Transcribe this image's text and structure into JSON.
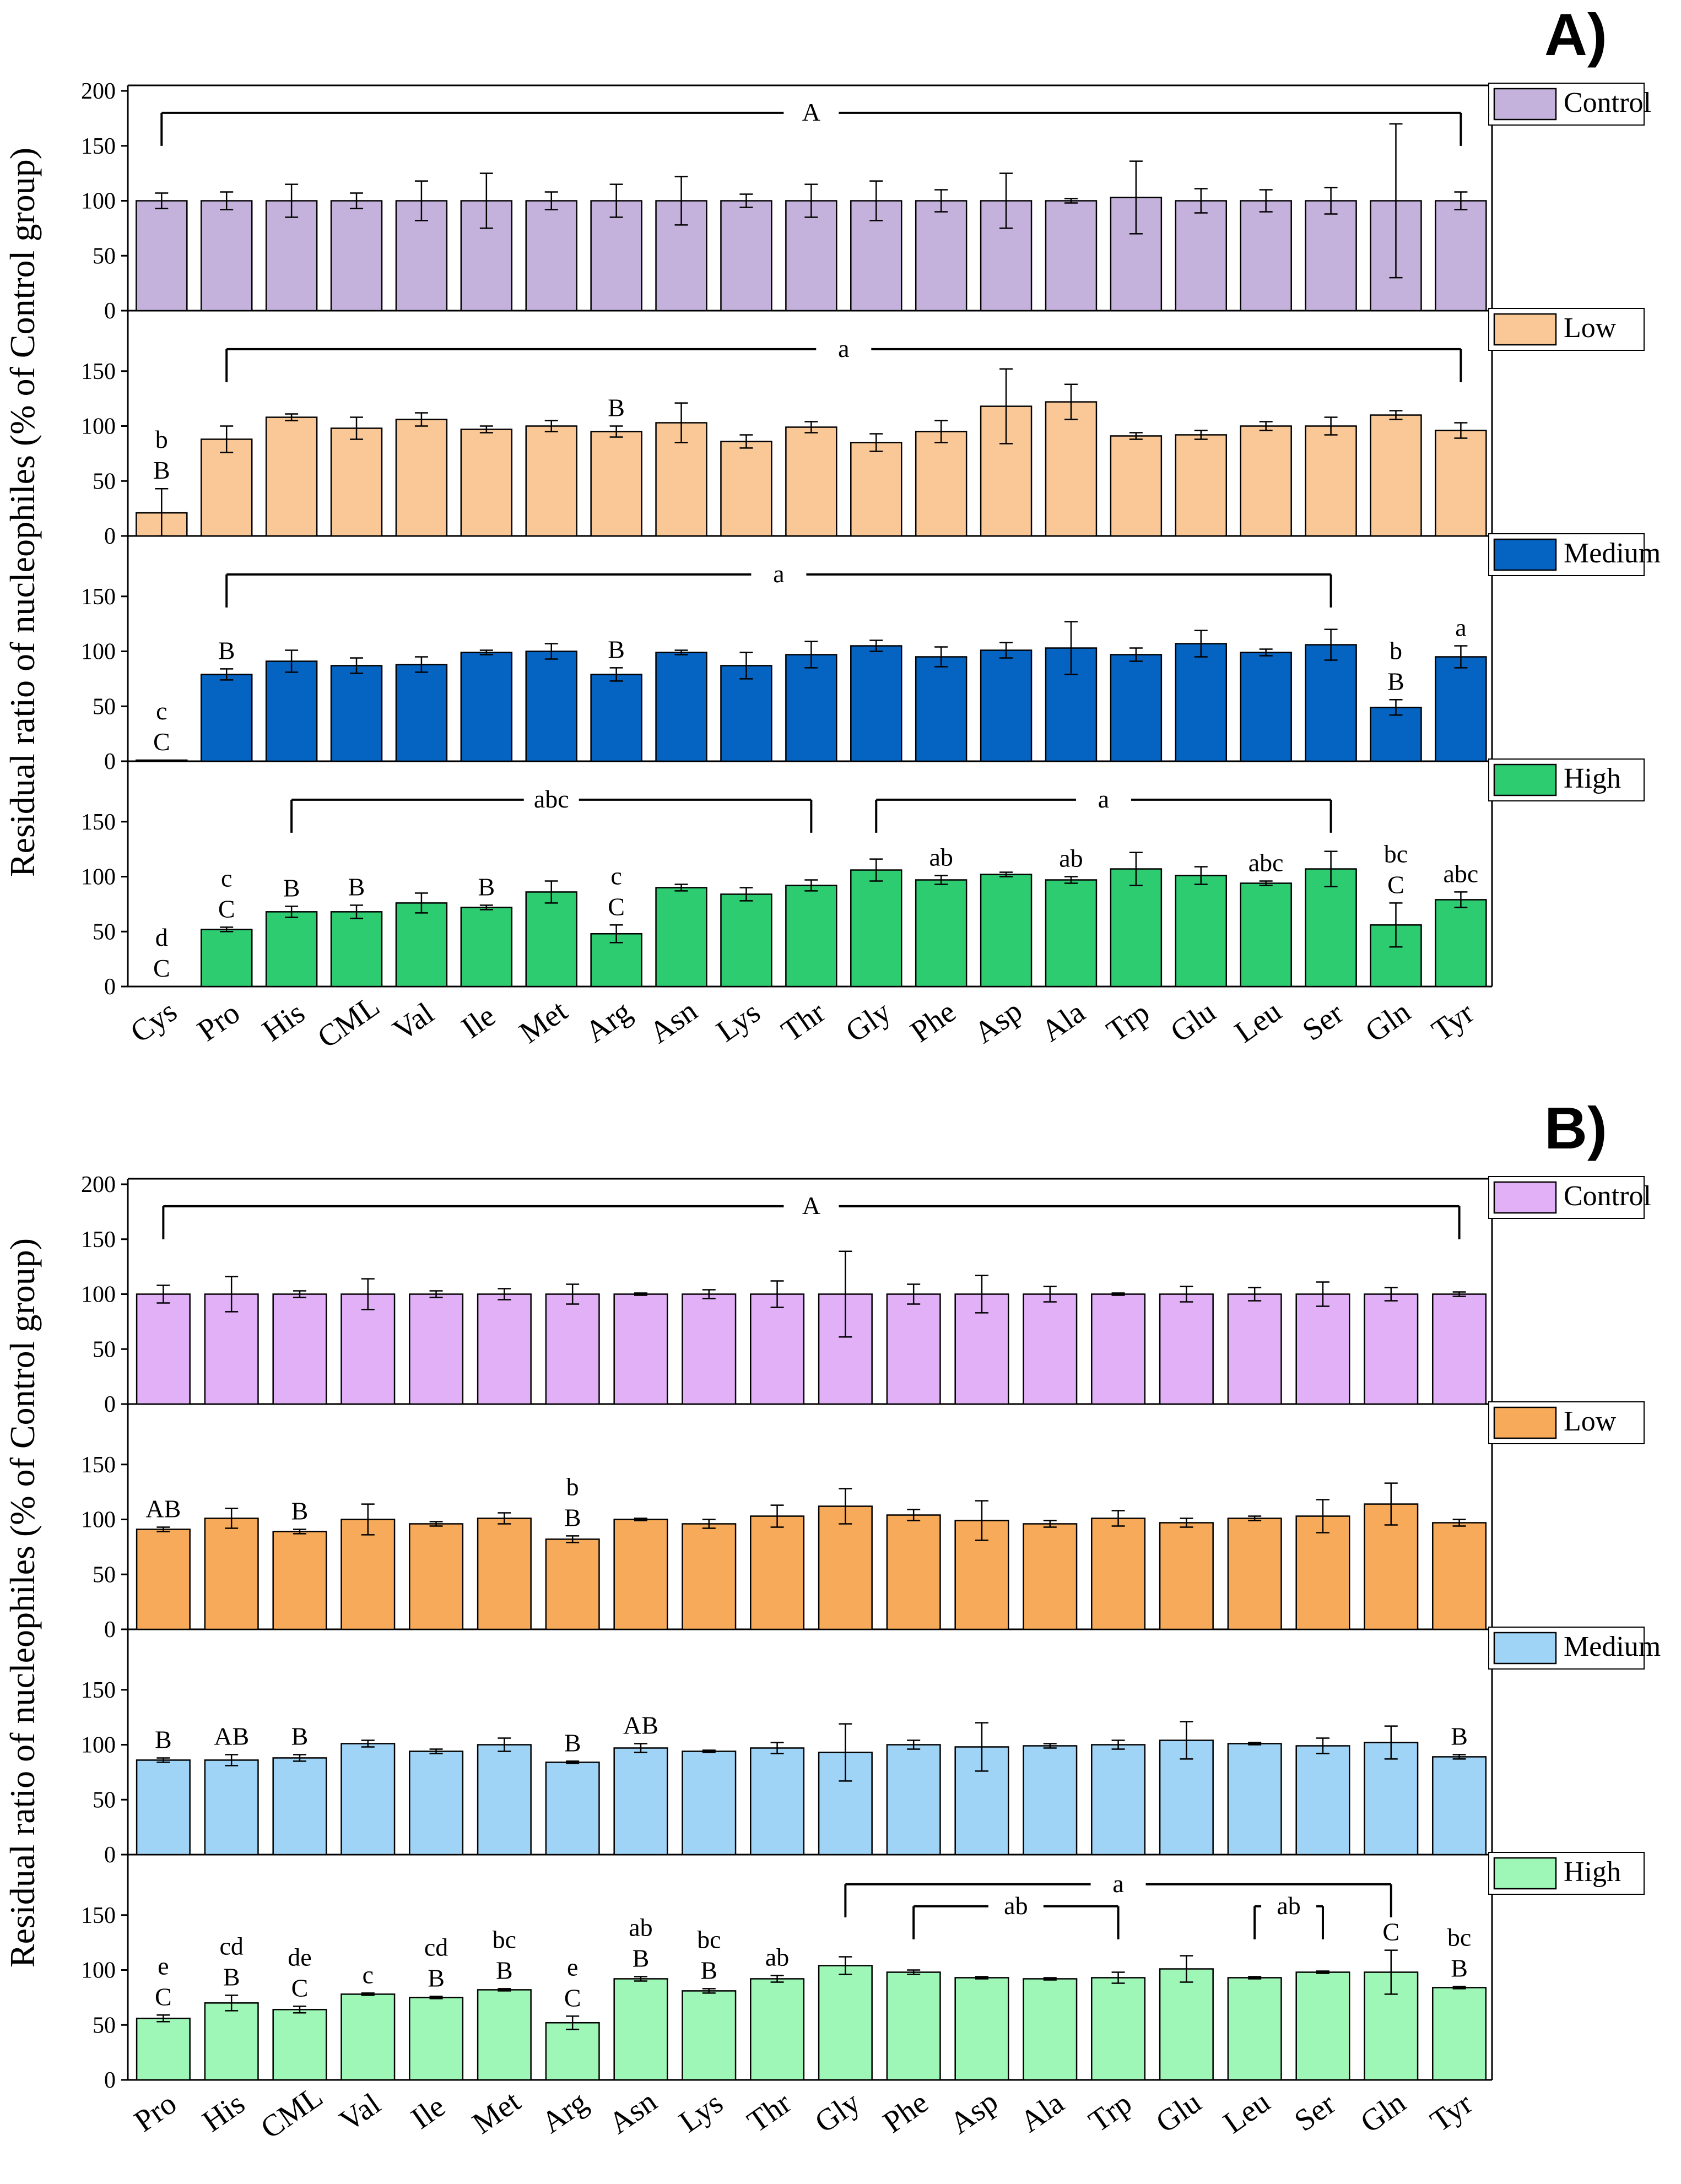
{
  "chart_data": [
    {
      "type": "bar",
      "panel_label": "A)",
      "ylabel": "Residual ratio of nucleophiles (% of Control group)",
      "ylim": [
        0,
        200
      ],
      "yticks": [
        0,
        50,
        100,
        150,
        200
      ],
      "categories": [
        "Cys",
        "Pro",
        "His",
        "CML",
        "Val",
        "Ile",
        "Met",
        "Arg",
        "Asn",
        "Lys",
        "Thr",
        "Gly",
        "Phe",
        "Asp",
        "Ala",
        "Trp",
        "Glu",
        "Leu",
        "Ser",
        "Gln",
        "Tyr"
      ],
      "series": [
        {
          "name": "Control",
          "color": "#c5b2dc",
          "values": [
            100,
            100,
            100,
            100,
            100,
            100,
            100,
            100,
            100,
            100,
            100,
            100,
            100,
            100,
            100,
            103,
            100,
            100,
            100,
            100,
            100
          ],
          "errors": [
            7,
            8,
            15,
            7,
            18,
            25,
            8,
            15,
            22,
            6,
            15,
            18,
            10,
            25,
            2,
            33,
            11,
            10,
            12,
            70,
            8
          ],
          "letters": [
            "",
            "",
            "",
            "",
            "",
            "",
            "",
            "",
            "",
            "",
            "",
            "",
            "",
            "",
            "",
            "",
            "",
            "",
            "",
            "",
            ""
          ],
          "brackets": [
            {
              "label": "A",
              "from": 0,
              "to": 20
            }
          ]
        },
        {
          "name": "Low",
          "color": "#f9c896",
          "values": [
            21,
            88,
            108,
            98,
            106,
            97,
            100,
            95,
            103,
            86,
            99,
            85,
            95,
            118,
            122,
            91,
            92,
            100,
            100,
            110,
            96
          ],
          "errors": [
            22,
            12,
            3,
            10,
            6,
            3,
            5,
            5,
            18,
            6,
            5,
            8,
            10,
            34,
            16,
            3,
            4,
            4,
            8,
            4,
            7
          ],
          "letters": [
            "b\nB",
            "",
            "",
            "",
            "",
            "",
            "",
            "B",
            "",
            "",
            "",
            "",
            "",
            "",
            "",
            "",
            "",
            "",
            "",
            "",
            ""
          ],
          "brackets": [
            {
              "label": "a",
              "from": 1,
              "to": 20
            }
          ]
        },
        {
          "name": "Medium",
          "color": "#0563c1",
          "values": [
            1,
            79,
            91,
            87,
            88,
            99,
            100,
            79,
            99,
            87,
            97,
            105,
            95,
            101,
            103,
            97,
            107,
            99,
            106,
            49,
            95
          ],
          "errors": [
            0,
            5,
            10,
            7,
            7,
            2,
            7,
            6,
            2,
            12,
            12,
            5,
            9,
            7,
            24,
            6,
            12,
            3,
            14,
            7,
            10
          ],
          "letters": [
            "c\nC",
            "B",
            "",
            "",
            "",
            "",
            "",
            "B",
            "",
            "",
            "",
            "",
            "",
            "",
            "",
            "",
            "",
            "",
            "",
            "b\nB",
            "a"
          ],
          "brackets": [
            {
              "label": "a",
              "from": 1,
              "to": 18
            }
          ]
        },
        {
          "name": "High",
          "color": "#2ecc71",
          "values": [
            0,
            52,
            68,
            68,
            76,
            72,
            86,
            48,
            90,
            84,
            92,
            106,
            97,
            102,
            97,
            107,
            101,
            94,
            107,
            56,
            79
          ],
          "errors": [
            0,
            2,
            5,
            6,
            9,
            2,
            10,
            8,
            3,
            6,
            5,
            10,
            4,
            2,
            3,
            15,
            8,
            2,
            16,
            20,
            7
          ],
          "letters": [
            "d\nC",
            "c\nC",
            "B",
            "B",
            "",
            "B",
            "",
            "c\nC",
            "",
            "",
            "",
            "",
            "ab",
            "",
            "ab",
            "",
            "",
            "abc",
            "",
            "bc\nC",
            "abc"
          ],
          "brackets": [
            {
              "label": "abc",
              "from": 2,
              "to": 10
            },
            {
              "label": "a",
              "from": 11,
              "to": 18
            }
          ]
        }
      ]
    },
    {
      "type": "bar",
      "panel_label": "B)",
      "ylabel": "Residual ratio of nucleophiles (% of Control group)",
      "ylim": [
        0,
        200
      ],
      "yticks": [
        0,
        50,
        100,
        150,
        200
      ],
      "categories": [
        "Pro",
        "His",
        "CML",
        "Val",
        "Ile",
        "Met",
        "Arg",
        "Asn",
        "Lys",
        "Thr",
        "Gly",
        "Phe",
        "Asp",
        "Ala",
        "Trp",
        "Glu",
        "Leu",
        "Ser",
        "Gln",
        "Tyr"
      ],
      "series": [
        {
          "name": "Control",
          "color": "#e1b0f7",
          "values": [
            100,
            100,
            100,
            100,
            100,
            100,
            100,
            100,
            100,
            100,
            100,
            100,
            100,
            100,
            100,
            100,
            100,
            100,
            100,
            100
          ],
          "errors": [
            8,
            16,
            3,
            14,
            3,
            5,
            9,
            1,
            4,
            12,
            39,
            9,
            17,
            7,
            1,
            7,
            6,
            11,
            6,
            2
          ],
          "letters": [
            "",
            "",
            "",
            "",
            "",
            "",
            "",
            "",
            "",
            "",
            "",
            "",
            "",
            "",
            "",
            "",
            "",
            "",
            "",
            ""
          ],
          "brackets": [
            {
              "label": "A",
              "from": 0,
              "to": 19
            }
          ]
        },
        {
          "name": "Low",
          "color": "#f7ab5a",
          "values": [
            91,
            101,
            89,
            100,
            96,
            101,
            82,
            100,
            96,
            103,
            112,
            104,
            99,
            96,
            101,
            97,
            101,
            103,
            114,
            97
          ],
          "errors": [
            2,
            9,
            2,
            14,
            2,
            5,
            3,
            1,
            4,
            10,
            16,
            5,
            18,
            3,
            7,
            4,
            2,
            15,
            19,
            3
          ],
          "letters": [
            "AB",
            "",
            "B",
            "",
            "",
            "",
            "b\nB",
            "",
            "",
            "",
            "",
            "",
            "",
            "",
            "",
            "",
            "",
            "",
            "",
            ""
          ],
          "brackets": []
        },
        {
          "name": "Medium",
          "color": "#9fd4f7",
          "values": [
            86,
            86,
            88,
            101,
            94,
            100,
            84,
            97,
            94,
            97,
            93,
            100,
            98,
            99,
            100,
            104,
            101,
            99,
            102,
            89
          ],
          "errors": [
            2,
            5,
            3,
            3,
            2,
            6,
            1,
            4,
            1,
            5,
            26,
            4,
            22,
            2,
            4,
            17,
            1,
            7,
            15,
            2
          ],
          "letters": [
            "B",
            "AB",
            "B",
            "",
            "",
            "",
            "B",
            "AB",
            "",
            "",
            "",
            "",
            "",
            "",
            "",
            "",
            "",
            "",
            "",
            "B"
          ],
          "brackets": []
        },
        {
          "name": "High",
          "color": "#9ef7b7",
          "values": [
            56,
            70,
            64,
            78,
            75,
            82,
            52,
            92,
            81,
            92,
            104,
            98,
            93,
            92,
            93,
            101,
            93,
            98,
            98,
            84
          ],
          "errors": [
            3,
            7,
            3,
            1,
            1,
            1,
            6,
            2,
            2,
            3,
            8,
            2,
            1,
            1,
            5,
            12,
            1,
            1,
            20,
            1
          ],
          "letters": [
            "e\nC",
            "cd\nB",
            "de\nC",
            "c",
            "cd\nB",
            "bc\nB",
            "e\nC",
            "ab\nB",
            "bc\nB",
            "ab",
            "",
            "",
            "",
            "",
            "",
            "",
            "",
            "",
            "C",
            "bc\nB"
          ],
          "brackets": [
            {
              "label": "ab",
              "from": 11,
              "to": 14,
              "y": 158
            },
            {
              "label": "ab",
              "from": 16,
              "to": 17,
              "y": 158
            },
            {
              "label": "a",
              "from": 10,
              "to": 18,
              "y": 178
            }
          ]
        }
      ]
    }
  ]
}
